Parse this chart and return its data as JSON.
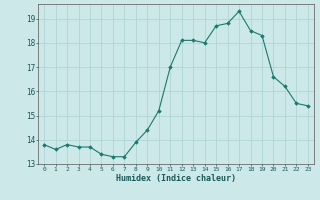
{
  "x": [
    0,
    1,
    2,
    3,
    4,
    5,
    6,
    7,
    8,
    9,
    10,
    11,
    12,
    13,
    14,
    15,
    16,
    17,
    18,
    19,
    20,
    21,
    22,
    23
  ],
  "y": [
    13.8,
    13.6,
    13.8,
    13.7,
    13.7,
    13.4,
    13.3,
    13.3,
    13.9,
    14.4,
    15.2,
    17.0,
    18.1,
    18.1,
    18.0,
    18.7,
    18.8,
    19.3,
    18.5,
    18.3,
    16.6,
    16.2,
    15.5,
    15.4
  ],
  "xlabel": "Humidex (Indice chaleur)",
  "line_color": "#1a7a6e",
  "marker_color": "#1a7a6e",
  "bg_color": "#cce8e8",
  "grid_color": "#b0d4d4",
  "ylim": [
    13.0,
    19.6
  ],
  "yticks": [
    13,
    14,
    15,
    16,
    17,
    18,
    19
  ],
  "xticks": [
    0,
    1,
    2,
    3,
    4,
    5,
    6,
    7,
    8,
    9,
    10,
    11,
    12,
    13,
    14,
    15,
    16,
    17,
    18,
    19,
    20,
    21,
    22,
    23
  ],
  "xtick_labels": [
    "0",
    "1",
    "2",
    "3",
    "4",
    "5",
    "6",
    "7",
    "8",
    "9",
    "10",
    "11",
    "12",
    "13",
    "14",
    "15",
    "16",
    "17",
    "18",
    "19",
    "20",
    "21",
    "22",
    "23"
  ]
}
